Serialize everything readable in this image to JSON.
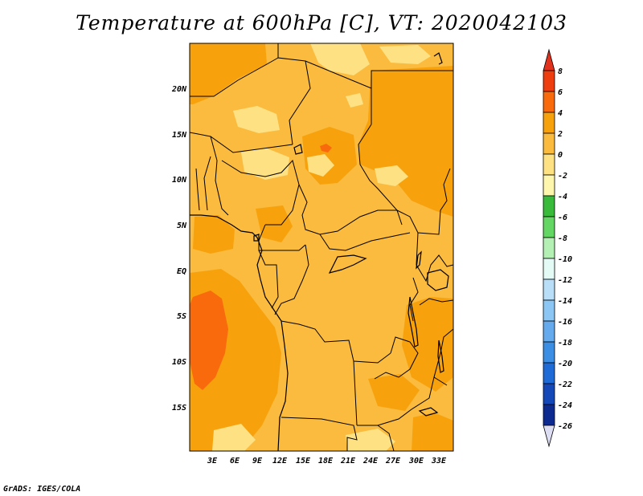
{
  "title": "Temperature at 600hPa [C], VT: 2020042103",
  "credit": "GrADS: IGES/COLA",
  "map": {
    "lat_labels": [
      "20N",
      "15N",
      "10N",
      "5N",
      "EQ",
      "5S",
      "10S",
      "15S"
    ],
    "lon_labels": [
      "3E",
      "6E",
      "9E",
      "12E",
      "15E",
      "18E",
      "21E",
      "24E",
      "27E",
      "30E",
      "33E"
    ]
  },
  "colorbar": {
    "labels": [
      "8",
      "6",
      "4",
      "2",
      "0",
      "-2",
      "-4",
      "-6",
      "-8",
      "-10",
      "-12",
      "-14",
      "-16",
      "-18",
      "-20",
      "-22",
      "-24",
      "-26"
    ],
    "colors": {
      "above_8": "#e0321c",
      "6_8": "#ee3e0f",
      "4_6": "#f86a0c",
      "2_4": "#f7a20d",
      "0_2": "#fbbb3e",
      "m2_0": "#fde183",
      "m4_m2": "#fef6ad",
      "m6_m4": "#3aba3a",
      "m8_m6": "#64d664",
      "m10_m8": "#b4f0b4",
      "m12_m10": "#e4faf4",
      "m14_m12": "#b8def8",
      "m16_m14": "#8cc6f4",
      "m18_m16": "#64aaec",
      "m20_m18": "#3c8ee4",
      "m22_m20": "#1e6ad6",
      "m24_m22": "#1448b8",
      "m26_m24": "#0c2a90",
      "below_m26": "#ddddf4"
    }
  }
}
